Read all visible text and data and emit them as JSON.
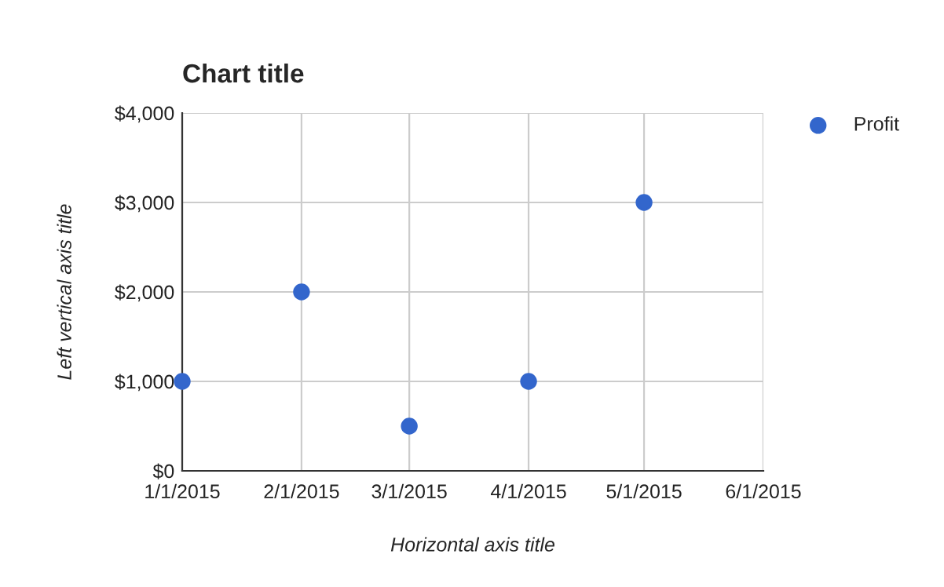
{
  "chart_data": {
    "type": "scatter",
    "title": "Chart title",
    "xlabel": "Horizontal axis title",
    "ylabel": "Left vertical axis title",
    "x": [
      "2015-01-01",
      "2015-02-01",
      "2015-03-01",
      "2015-04-01",
      "2015-05-01"
    ],
    "series": [
      {
        "name": "Profit",
        "color": "#3366cc",
        "values": [
          1000,
          2000,
          500,
          1000,
          3000
        ]
      }
    ],
    "xlim": [
      "2015-01-01",
      "2015-06-01"
    ],
    "xticks": [
      {
        "value": "2015-01-01",
        "label": "1/1/2015"
      },
      {
        "value": "2015-02-01",
        "label": "2/1/2015"
      },
      {
        "value": "2015-03-01",
        "label": "3/1/2015"
      },
      {
        "value": "2015-04-01",
        "label": "4/1/2015"
      },
      {
        "value": "2015-05-01",
        "label": "5/1/2015"
      },
      {
        "value": "2015-06-01",
        "label": "6/1/2015"
      }
    ],
    "ylim": [
      0,
      4000
    ],
    "yticks": [
      {
        "value": 0,
        "label": "$0"
      },
      {
        "value": 1000,
        "label": "$1,000"
      },
      {
        "value": 2000,
        "label": "$2,000"
      },
      {
        "value": 3000,
        "label": "$3,000"
      },
      {
        "value": 4000,
        "label": "$4,000"
      }
    ],
    "grid": true,
    "legend": "top right",
    "marker": "circle"
  }
}
